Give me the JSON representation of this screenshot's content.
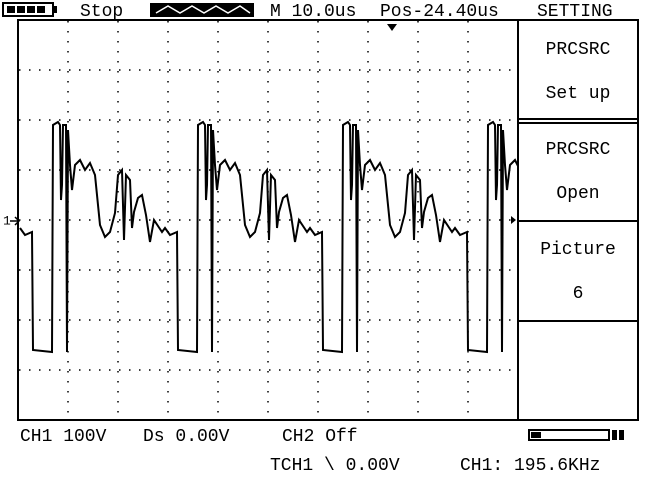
{
  "top_bar": {
    "status": "Stop",
    "timebase": "M 10.0us",
    "position": "Pos-24.40us",
    "menu_title": "SETTING"
  },
  "menu": [
    {
      "line1": "PRCSRC",
      "line2": "Set up"
    },
    {
      "line1": "PRCSRC",
      "line2": "Open"
    },
    {
      "line1": "Picture",
      "line2": "6"
    }
  ],
  "bottom": {
    "ch1": "CH1 100V",
    "ds": "Ds 0.00V",
    "ch2": "CH2 Off",
    "trigger": "TCH1 \\ 0.00V",
    "frequency": "CH1: 195.6KHz"
  },
  "channel_marker": "1"
}
